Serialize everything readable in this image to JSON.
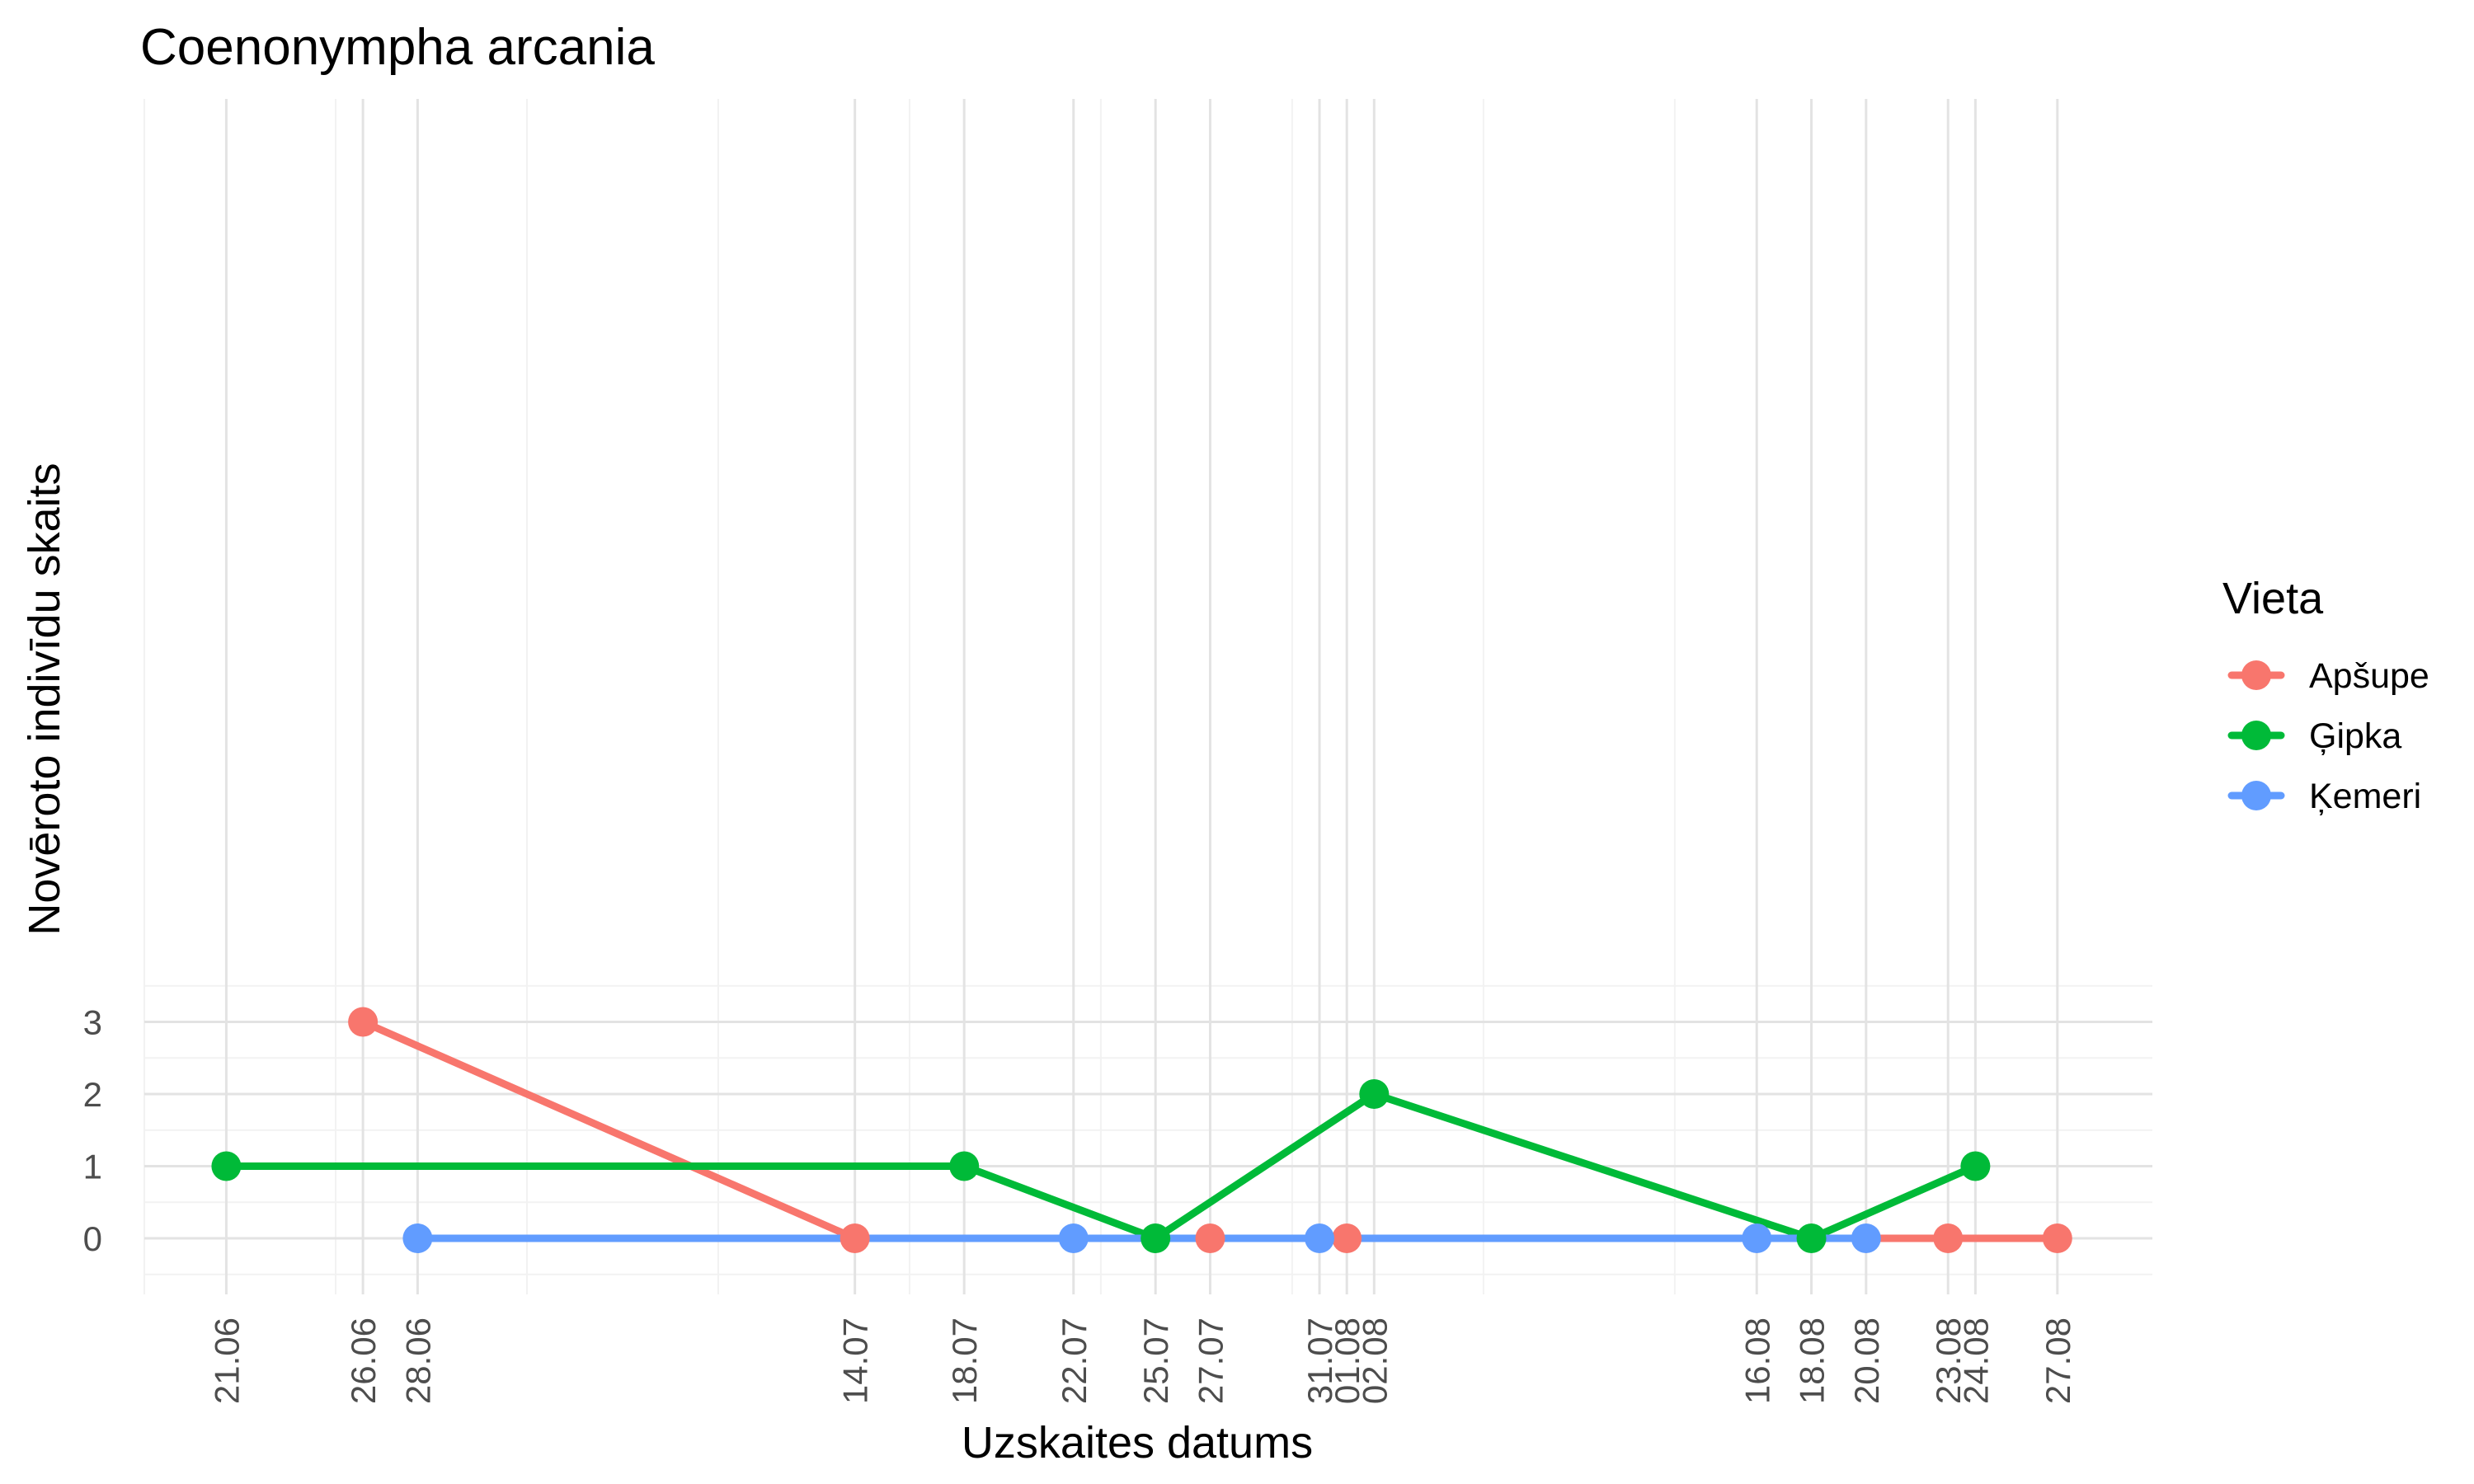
{
  "chart_data": {
    "type": "line",
    "title": "Coenonympha arcania",
    "xlabel": "Uzskaites datums",
    "ylabel": "Novēroto indivīdu skaits",
    "x_axis": "date",
    "x_ticks": [
      "2023-06-21",
      "2023-06-26",
      "2023-06-28",
      "2023-07-14",
      "2023-07-18",
      "2023-07-22",
      "2023-07-25",
      "2023-07-27",
      "2023-07-31",
      "2023-08-01",
      "2023-08-02",
      "2023-08-16",
      "2023-08-18",
      "2023-08-20",
      "2023-08-23",
      "2023-08-24",
      "2023-08-27"
    ],
    "x_tick_labels": [
      "21.06",
      "26.06",
      "28.06",
      "14.07",
      "18.07",
      "22.07",
      "25.07",
      "27.07",
      "31.07",
      "01.08",
      "02.08",
      "16.08",
      "18.08",
      "20.08",
      "23.08",
      "24.08",
      "27.08"
    ],
    "x_range": [
      "2023-06-18",
      "2023-08-30"
    ],
    "y_ticks": [
      0,
      1,
      2,
      3
    ],
    "ylim": [
      -0.75,
      15
    ],
    "grid": true,
    "legend": {
      "title": "Vieta",
      "position": "right"
    },
    "series": [
      {
        "name": "Apšupe",
        "color": "#f8766d",
        "points": [
          {
            "x": "2023-06-26",
            "y": 3
          },
          {
            "x": "2023-07-14",
            "y": 0
          },
          {
            "x": "2023-07-27",
            "y": 0
          },
          {
            "x": "2023-08-01",
            "y": 0
          },
          {
            "x": "2023-08-23",
            "y": 0
          },
          {
            "x": "2023-08-27",
            "y": 0
          }
        ]
      },
      {
        "name": "Ģipka",
        "color": "#00ba38",
        "points": [
          {
            "x": "2023-06-21",
            "y": 1
          },
          {
            "x": "2023-07-18",
            "y": 1
          },
          {
            "x": "2023-07-25",
            "y": 0
          },
          {
            "x": "2023-08-02",
            "y": 2
          },
          {
            "x": "2023-08-18",
            "y": 0
          },
          {
            "x": "2023-08-24",
            "y": 1
          }
        ]
      },
      {
        "name": "Ķemeri",
        "color": "#619cff",
        "points": [
          {
            "x": "2023-06-28",
            "y": 0
          },
          {
            "x": "2023-07-22",
            "y": 0
          },
          {
            "x": "2023-07-31",
            "y": 0
          },
          {
            "x": "2023-08-16",
            "y": 0
          },
          {
            "x": "2023-08-20",
            "y": 0
          }
        ]
      }
    ]
  }
}
